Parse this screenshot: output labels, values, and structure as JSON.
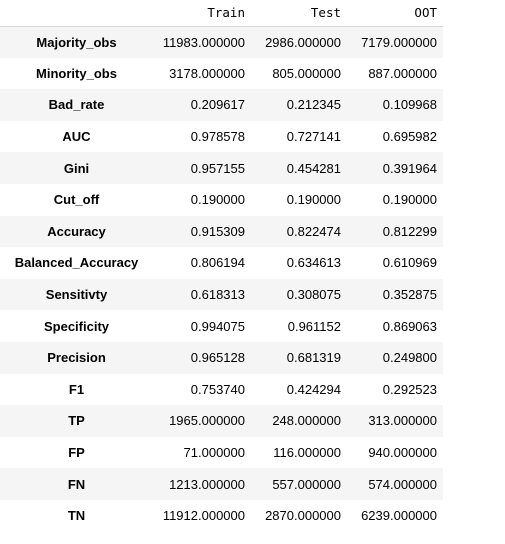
{
  "table": {
    "columns": [
      "Train",
      "Test",
      "OOT"
    ],
    "rows": [
      {
        "label": "Majority_obs",
        "values": [
          "11983.000000",
          "2986.000000",
          "7179.000000"
        ]
      },
      {
        "label": "Minority_obs",
        "values": [
          "3178.000000",
          "805.000000",
          "887.000000"
        ]
      },
      {
        "label": "Bad_rate",
        "values": [
          "0.209617",
          "0.212345",
          "0.109968"
        ]
      },
      {
        "label": "AUC",
        "values": [
          "0.978578",
          "0.727141",
          "0.695982"
        ]
      },
      {
        "label": "Gini",
        "values": [
          "0.957155",
          "0.454281",
          "0.391964"
        ]
      },
      {
        "label": "Cut_off",
        "values": [
          "0.190000",
          "0.190000",
          "0.190000"
        ]
      },
      {
        "label": "Accuracy",
        "values": [
          "0.915309",
          "0.822474",
          "0.812299"
        ]
      },
      {
        "label": "Balanced_Accuracy",
        "values": [
          "0.806194",
          "0.634613",
          "0.610969"
        ]
      },
      {
        "label": "Sensitivty",
        "values": [
          "0.618313",
          "0.308075",
          "0.352875"
        ]
      },
      {
        "label": "Specificity",
        "values": [
          "0.994075",
          "0.961152",
          "0.869063"
        ]
      },
      {
        "label": "Precision",
        "values": [
          "0.965128",
          "0.681319",
          "0.249800"
        ]
      },
      {
        "label": "F1",
        "values": [
          "0.753740",
          "0.424294",
          "0.292523"
        ]
      },
      {
        "label": "TP",
        "values": [
          "1965.000000",
          "248.000000",
          "313.000000"
        ]
      },
      {
        "label": "FP",
        "values": [
          "71.000000",
          "116.000000",
          "940.000000"
        ]
      },
      {
        "label": "FN",
        "values": [
          "1213.000000",
          "557.000000",
          "574.000000"
        ]
      },
      {
        "label": "TN",
        "values": [
          "11912.000000",
          "2870.000000",
          "6239.000000"
        ]
      }
    ]
  }
}
